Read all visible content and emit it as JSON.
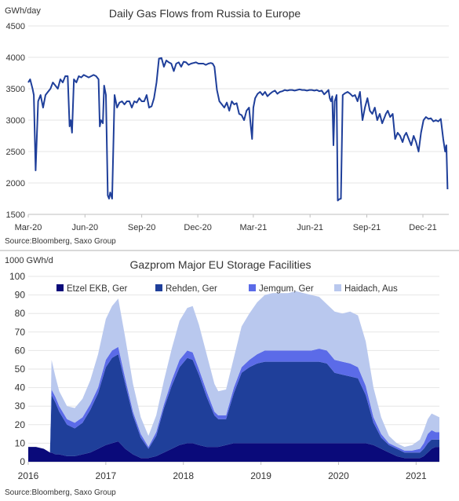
{
  "chart_data": [
    {
      "type": "line",
      "title": "Daily Gas Flows from Russia to Europe",
      "unit_label": "GWh/day",
      "source": "Source:Bloomberg,  Saxo Group",
      "ylim": [
        1500,
        4500
      ],
      "yticks": [
        "1500",
        "2000",
        "2500",
        "3000",
        "3500",
        "4000",
        "4500"
      ],
      "x_tick_labels": [
        "Mar-20",
        "Jun-20",
        "Sep-20",
        "Dec-20",
        "Mar-21",
        "Jun-21",
        "Sep-21",
        "Dec-21"
      ],
      "x_tick_dates": [
        "2020-03-01",
        "2020-06-01",
        "2020-09-01",
        "2020-12-01",
        "2021-03-01",
        "2021-06-01",
        "2021-09-01",
        "2021-12-01"
      ],
      "xlim": [
        "2020-03-01",
        "2022-01-12"
      ],
      "grid": "horizontal",
      "color": "#1f3f9a",
      "series": [
        {
          "x": [
            "2020-03-01",
            "2020-03-04",
            "2020-03-08",
            "2020-03-10",
            "2020-03-13",
            "2020-03-17",
            "2020-03-21",
            "2020-03-25",
            "2020-03-29",
            "2020-04-02",
            "2020-04-06",
            "2020-04-10",
            "2020-04-14",
            "2020-04-18",
            "2020-04-22",
            "2020-04-26",
            "2020-04-30",
            "2020-05-04",
            "2020-05-07",
            "2020-05-09",
            "2020-05-11",
            "2020-05-14",
            "2020-05-18",
            "2020-05-22",
            "2020-05-26",
            "2020-05-30",
            "2020-06-03",
            "2020-06-07",
            "2020-06-11",
            "2020-06-15",
            "2020-06-19",
            "2020-06-23",
            "2020-06-25",
            "2020-06-27",
            "2020-06-30",
            "2020-07-02",
            "2020-07-05",
            "2020-07-08",
            "2020-07-10",
            "2020-07-12",
            "2020-07-15",
            "2020-07-19",
            "2020-07-23",
            "2020-07-27",
            "2020-07-31",
            "2020-08-04",
            "2020-08-08",
            "2020-08-12",
            "2020-08-16",
            "2020-08-20",
            "2020-08-24",
            "2020-08-28",
            "2020-09-01",
            "2020-09-05",
            "2020-09-09",
            "2020-09-13",
            "2020-09-17",
            "2020-09-21",
            "2020-09-25",
            "2020-09-29",
            "2020-10-03",
            "2020-10-07",
            "2020-10-11",
            "2020-10-15",
            "2020-10-19",
            "2020-10-23",
            "2020-10-27",
            "2020-10-31",
            "2020-11-04",
            "2020-11-08",
            "2020-11-12",
            "2020-11-16",
            "2020-11-20",
            "2020-11-24",
            "2020-11-28",
            "2020-12-02",
            "2020-12-06",
            "2020-12-10",
            "2020-12-14",
            "2020-12-18",
            "2020-12-22",
            "2020-12-25",
            "2020-12-28",
            "2021-01-01",
            "2021-01-05",
            "2021-01-09",
            "2021-01-13",
            "2021-01-17",
            "2021-01-21",
            "2021-01-25",
            "2021-01-29",
            "2021-02-02",
            "2021-02-06",
            "2021-02-10",
            "2021-02-14",
            "2021-02-18",
            "2021-02-22",
            "2021-02-25",
            "2021-02-27",
            "2021-03-01",
            "2021-03-04",
            "2021-03-08",
            "2021-03-12",
            "2021-03-16",
            "2021-03-20",
            "2021-03-24",
            "2021-03-28",
            "2021-04-01",
            "2021-04-05",
            "2021-04-09",
            "2021-04-13",
            "2021-04-17",
            "2021-04-21",
            "2021-04-25",
            "2021-04-29",
            "2021-05-03",
            "2021-05-07",
            "2021-05-11",
            "2021-05-15",
            "2021-05-19",
            "2021-05-23",
            "2021-05-27",
            "2021-05-31",
            "2021-06-04",
            "2021-06-08",
            "2021-06-12",
            "2021-06-16",
            "2021-06-20",
            "2021-06-24",
            "2021-06-28",
            "2021-07-01",
            "2021-07-03",
            "2021-07-05",
            "2021-07-07",
            "2021-07-09",
            "2021-07-11",
            "2021-07-14",
            "2021-07-16",
            "2021-07-18",
            "2021-07-21",
            "2021-07-24",
            "2021-07-28",
            "2021-08-01",
            "2021-08-05",
            "2021-08-09",
            "2021-08-13",
            "2021-08-17",
            "2021-08-21",
            "2021-08-25",
            "2021-08-29",
            "2021-09-02",
            "2021-09-06",
            "2021-09-10",
            "2021-09-14",
            "2021-09-18",
            "2021-09-22",
            "2021-09-26",
            "2021-09-30",
            "2021-10-02",
            "2021-10-05",
            "2021-10-09",
            "2021-10-13",
            "2021-10-17",
            "2021-10-21",
            "2021-10-25",
            "2021-10-29",
            "2021-11-01",
            "2021-11-04",
            "2021-11-08",
            "2021-11-12",
            "2021-11-16",
            "2021-11-20",
            "2021-11-24",
            "2021-11-28",
            "2021-12-02",
            "2021-12-06",
            "2021-12-10",
            "2021-12-14",
            "2021-12-18",
            "2021-12-22",
            "2021-12-26",
            "2021-12-30",
            "2022-01-03",
            "2022-01-06",
            "2022-01-08",
            "2022-01-10"
          ],
          "y": [
            3600,
            3650,
            3500,
            3400,
            2200,
            3300,
            3400,
            3200,
            3400,
            3450,
            3500,
            3600,
            3550,
            3500,
            3650,
            3600,
            3700,
            3700,
            2900,
            3000,
            2800,
            3650,
            3600,
            3700,
            3680,
            3720,
            3700,
            3680,
            3700,
            3720,
            3700,
            3650,
            2900,
            3000,
            2950,
            3550,
            3400,
            1800,
            1750,
            1850,
            1750,
            3400,
            3200,
            3280,
            3300,
            3250,
            3300,
            3300,
            3200,
            3300,
            3280,
            3350,
            3300,
            3300,
            3400,
            3200,
            3220,
            3350,
            3600,
            3980,
            3990,
            3850,
            3950,
            3920,
            3900,
            3780,
            3900,
            3920,
            3850,
            3930,
            3920,
            3880,
            3900,
            3910,
            3920,
            3900,
            3900,
            3900,
            3880,
            3900,
            3910,
            3900,
            3850,
            3480,
            3300,
            3250,
            3200,
            3280,
            3150,
            3300,
            3250,
            3270,
            3100,
            3080,
            3000,
            3150,
            3200,
            2900,
            2700,
            3200,
            3350,
            3420,
            3450,
            3400,
            3450,
            3380,
            3420,
            3450,
            3470,
            3420,
            3450,
            3460,
            3480,
            3470,
            3480,
            3480,
            3470,
            3480,
            3490,
            3480,
            3480,
            3470,
            3480,
            3480,
            3470,
            3480,
            3460,
            3470,
            3410,
            3450,
            3480,
            3350,
            3300,
            3380,
            2600,
            3300,
            3400,
            1720,
            1740,
            1750,
            3400,
            3430,
            3450,
            3420,
            3380,
            3400,
            3300,
            3450,
            3000,
            3200,
            3350,
            3150,
            3100,
            3200,
            3000,
            3100,
            2950,
            3050,
            3100,
            3150,
            3050,
            3100,
            2700,
            2800,
            2750,
            2650,
            2750,
            2800,
            2700,
            2600,
            2750,
            2650,
            2500,
            2800,
            3000,
            3050,
            3020,
            3030,
            2980,
            3000,
            2980,
            3020,
            2700,
            2500,
            2600,
            1900
          ]
        }
      ]
    },
    {
      "type": "area",
      "stacked": true,
      "title": "Gazprom  Major  EU Storage Facilities",
      "unit_label": "1000 GWh/d",
      "source": "Source:Bloomberg,  Saxo Group",
      "ylim": [
        0,
        100
      ],
      "yticks": [
        "0",
        "10",
        "20",
        "30",
        "40",
        "50",
        "60",
        "70",
        "80",
        "90",
        "100"
      ],
      "x_tick_labels": [
        "2016",
        "2017",
        "2018",
        "2019",
        "2020",
        "2021"
      ],
      "x_tick_values": [
        2016,
        2017,
        2018,
        2019,
        2020,
        2021
      ],
      "xlim": [
        2016.0,
        2021.3
      ],
      "grid": "horizontal",
      "legend_position": "top",
      "x": [
        2016.0,
        2016.1,
        2016.2,
        2016.28,
        2016.3,
        2016.35,
        2016.4,
        2016.5,
        2016.6,
        2016.7,
        2016.8,
        2016.9,
        2017.0,
        2017.08,
        2017.16,
        2017.25,
        2017.35,
        2017.45,
        2017.55,
        2017.65,
        2017.75,
        2017.85,
        2017.95,
        2018.05,
        2018.12,
        2018.2,
        2018.3,
        2018.4,
        2018.45,
        2018.55,
        2018.65,
        2018.75,
        2018.85,
        2018.95,
        2019.05,
        2019.15,
        2019.25,
        2019.35,
        2019.45,
        2019.55,
        2019.65,
        2019.75,
        2019.85,
        2019.95,
        2020.05,
        2020.15,
        2020.25,
        2020.35,
        2020.45,
        2020.55,
        2020.65,
        2020.75,
        2020.85,
        2020.95,
        2021.05,
        2021.1,
        2021.15,
        2021.2,
        2021.25,
        2021.3
      ],
      "series": [
        {
          "name": "Etzel EKB, Ger",
          "color": "#0a0a7a",
          "values": [
            8,
            8,
            7,
            5,
            5,
            4,
            4,
            3,
            3,
            4,
            5,
            7,
            9,
            10,
            11,
            7,
            4,
            2,
            2,
            3,
            5,
            7,
            9,
            10,
            10,
            9,
            8,
            8,
            8,
            9,
            10,
            10,
            10,
            10,
            10,
            10,
            10,
            10,
            10,
            10,
            10,
            10,
            10,
            10,
            10,
            10,
            10,
            10,
            9,
            7,
            5,
            3,
            2,
            2,
            2,
            3,
            5,
            7,
            8,
            8
          ]
        },
        {
          "name": "Rehden, Ger",
          "color": "#1f3f9a",
          "values": [
            0,
            0,
            0,
            0,
            31,
            28,
            23,
            17,
            15,
            17,
            23,
            30,
            42,
            46,
            47,
            35,
            21,
            11,
            5,
            11,
            24,
            34,
            42,
            46,
            45,
            38,
            27,
            17,
            15,
            14,
            27,
            38,
            41,
            43,
            44,
            44,
            44,
            44,
            44,
            44,
            44,
            44,
            43,
            38,
            37,
            36,
            35,
            26,
            12,
            6,
            4,
            4,
            3,
            3,
            3,
            4,
            5,
            5,
            4,
            4
          ]
        },
        {
          "name": "Jemgum, Ger",
          "color": "#5b6be8",
          "values": [
            0,
            0,
            0,
            0,
            3,
            3,
            3,
            3,
            3,
            3,
            3,
            3,
            4,
            4,
            4,
            3,
            2,
            2,
            1,
            2,
            2,
            3,
            4,
            4,
            4,
            3,
            3,
            2,
            2,
            2,
            3,
            3,
            4,
            5,
            6,
            6,
            6,
            6,
            6,
            6,
            6,
            7,
            7,
            7,
            7,
            7,
            6,
            5,
            3,
            2,
            1,
            1,
            1,
            1,
            2,
            3,
            5,
            5,
            4,
            4
          ]
        },
        {
          "name": "Haidach, Aus",
          "color": "#b9c8ee",
          "values": [
            0,
            0,
            0,
            0,
            16,
            11,
            8,
            7,
            8,
            10,
            13,
            18,
            22,
            24,
            26,
            22,
            15,
            9,
            6,
            9,
            13,
            17,
            21,
            23,
            25,
            24,
            20,
            15,
            13,
            14,
            16,
            22,
            25,
            28,
            30,
            31,
            31,
            31,
            32,
            31,
            30,
            28,
            25,
            26,
            26,
            28,
            28,
            24,
            16,
            9,
            4,
            2,
            2,
            3,
            5,
            7,
            8,
            9,
            9,
            8
          ]
        }
      ]
    }
  ]
}
